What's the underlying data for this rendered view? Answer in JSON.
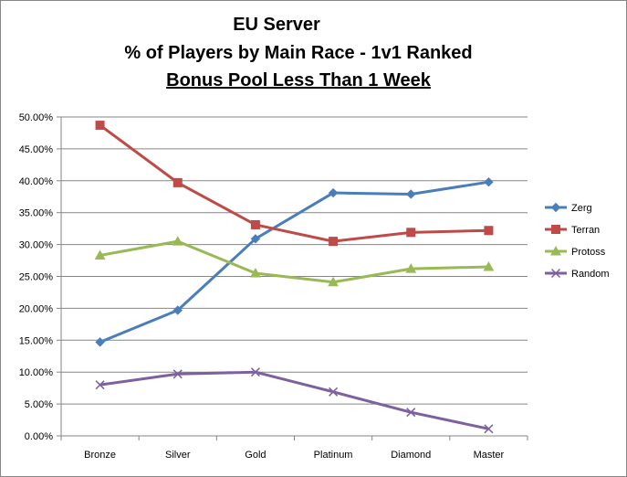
{
  "chart_data": {
    "type": "line",
    "title_lines": [
      "EU Server",
      "% of Players by Main Race - 1v1 Ranked",
      "Bonus Pool Less Than 1 Week"
    ],
    "xlabel": "",
    "ylabel": "",
    "categories": [
      "Bronze",
      "Silver",
      "Gold",
      "Platinum",
      "Diamond",
      "Master"
    ],
    "ylim": [
      0,
      50
    ],
    "y_ticks": [
      0,
      5,
      10,
      15,
      20,
      25,
      30,
      35,
      40,
      45,
      50
    ],
    "y_tick_labels": [
      "0.00%",
      "5.00%",
      "10.00%",
      "15.00%",
      "20.00%",
      "25.00%",
      "30.00%",
      "35.00%",
      "40.00%",
      "45.00%",
      "50.00%"
    ],
    "grid": "horizontal",
    "legend_position": "right",
    "series": [
      {
        "name": "Zerg",
        "color": "#4a7ebb",
        "marker": "diamond",
        "values": [
          14.7,
          19.7,
          30.9,
          38.1,
          37.9,
          39.8
        ]
      },
      {
        "name": "Terran",
        "color": "#be4b48",
        "marker": "square",
        "values": [
          48.7,
          39.7,
          33.1,
          30.5,
          31.9,
          32.2
        ]
      },
      {
        "name": "Protoss",
        "color": "#98b954",
        "marker": "triangle",
        "values": [
          28.3,
          30.5,
          25.5,
          24.1,
          26.2,
          26.5
        ]
      },
      {
        "name": "Random",
        "color": "#7d60a0",
        "marker": "x",
        "values": [
          8.0,
          9.7,
          10.0,
          6.9,
          3.7,
          1.1
        ]
      }
    ]
  }
}
